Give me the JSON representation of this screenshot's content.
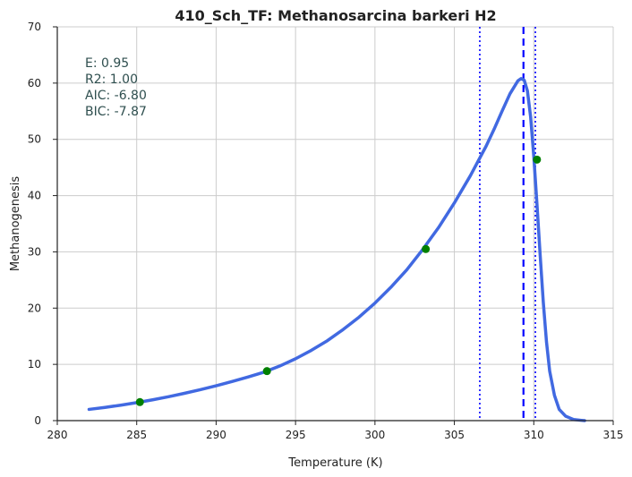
{
  "chart_data": {
    "type": "line",
    "title": "410_Sch_TF: Methanosarcina barkeri H2",
    "xlabel": "Temperature (K)",
    "ylabel": "Methanogenesis",
    "xlim": [
      280,
      315
    ],
    "ylim": [
      0,
      70
    ],
    "xticks": [
      280,
      285,
      290,
      295,
      300,
      305,
      310,
      315
    ],
    "yticks": [
      0,
      10,
      20,
      30,
      40,
      50,
      60,
      70
    ],
    "grid": true,
    "stats": [
      "E:  0.95",
      "R2:  1.00",
      "AIC: -6.80",
      "BIC: -7.87"
    ],
    "series": [
      {
        "kind": "fit-curve",
        "color": "#4169e1",
        "x": [
          282,
          283,
          284,
          285,
          286,
          287,
          288,
          289,
          290,
          291,
          292,
          293,
          294,
          295,
          296,
          297,
          298,
          299,
          300,
          301,
          302,
          303,
          304,
          305,
          306,
          307,
          307.5,
          308,
          308.5,
          309,
          309.2,
          309.4,
          309.6,
          309.8,
          310,
          310.2,
          310.4,
          310.6,
          310.8,
          311,
          311.3,
          311.6,
          312,
          312.5,
          313,
          313.2
        ],
        "y": [
          2.0,
          2.35,
          2.75,
          3.2,
          3.7,
          4.25,
          4.85,
          5.5,
          6.2,
          6.95,
          7.75,
          8.6,
          9.7,
          11.0,
          12.5,
          14.2,
          16.2,
          18.4,
          20.9,
          23.7,
          26.8,
          30.4,
          34.3,
          38.7,
          43.5,
          48.8,
          51.8,
          55.0,
          58.1,
          60.4,
          60.8,
          60.5,
          58.6,
          54.0,
          47.0,
          38.5,
          29.5,
          21.0,
          14.0,
          8.8,
          4.5,
          2.0,
          0.8,
          0.2,
          0.05,
          0.0
        ]
      },
      {
        "kind": "observed-points",
        "color": "#008000",
        "x": [
          285.2,
          293.2,
          303.2,
          310.2
        ],
        "y": [
          3.3,
          8.8,
          30.5,
          46.4
        ]
      }
    ],
    "vlines": [
      {
        "x": 306.6,
        "style": "dotted",
        "color": "#0000ff"
      },
      {
        "x": 309.35,
        "style": "dashed",
        "color": "#0000ff"
      },
      {
        "x": 310.1,
        "style": "dotted",
        "color": "#0000ff"
      }
    ]
  }
}
